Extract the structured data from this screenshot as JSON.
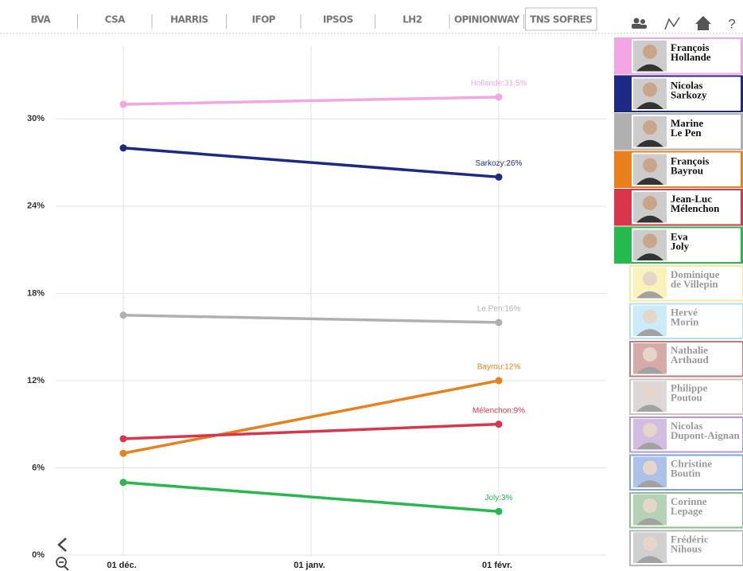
{
  "tabs": [
    {
      "label": "BVA"
    },
    {
      "label": "CSA"
    },
    {
      "label": "HARRIS"
    },
    {
      "label": "IFOP"
    },
    {
      "label": "IPSOS"
    },
    {
      "label": "LH2"
    },
    {
      "label": "OPINIONWAY"
    },
    {
      "label": "TNS SOFRES",
      "active": true
    }
  ],
  "toolbar": {
    "help": "?"
  },
  "chart_data": {
    "type": "line",
    "x": [
      "01 déc.",
      "01 févr."
    ],
    "xticks": [
      "01 déc.",
      "01 janv.",
      "01 févr."
    ],
    "ylim": [
      0,
      35
    ],
    "yticks": [
      {
        "value": 0,
        "label": "0%"
      },
      {
        "value": 6,
        "label": "6%"
      },
      {
        "value": 12,
        "label": "12%"
      },
      {
        "value": 18,
        "label": "18%"
      },
      {
        "value": 24,
        "label": "24%"
      },
      {
        "value": 30,
        "label": "30%"
      }
    ],
    "grid": true,
    "series": [
      {
        "color": "#f4a6e4",
        "values": [
          31,
          31.5
        ],
        "value_labels": [
          null,
          "Hollande:31.5%"
        ]
      },
      {
        "color": "#1c2a86",
        "values": [
          28,
          26
        ],
        "value_labels": [
          null,
          "Sarkozy:26%"
        ]
      },
      {
        "color": "#b0b0b0",
        "values": [
          16.5,
          16
        ],
        "value_labels": [
          null,
          "Le Pen:16%"
        ]
      },
      {
        "color": "#e8801e",
        "values": [
          7,
          12
        ],
        "value_labels": [
          null,
          "Bayrou:12%"
        ]
      },
      {
        "color": "#d8364c",
        "values": [
          8,
          9
        ],
        "value_labels": [
          null,
          "Mélenchon:9%"
        ]
      },
      {
        "color": "#27b84e",
        "values": [
          5,
          3
        ],
        "value_labels": [
          null,
          "Joly:3%"
        ]
      }
    ]
  },
  "candidates": [
    {
      "name_lines": [
        "François",
        "Hollande"
      ],
      "color": "#f4a6e4",
      "active": true
    },
    {
      "name_lines": [
        "Nicolas",
        "Sarkozy"
      ],
      "color": "#1c2a86",
      "active": true
    },
    {
      "name_lines": [
        "Marine",
        "Le Pen"
      ],
      "color": "#b0b0b0",
      "active": true
    },
    {
      "name_lines": [
        "François",
        "Bayrou"
      ],
      "color": "#e8801e",
      "active": true
    },
    {
      "name_lines": [
        "Jean-Luc",
        "Mélenchon"
      ],
      "color": "#d8364c",
      "active": true
    },
    {
      "name_lines": [
        "Eva",
        "Joly"
      ],
      "color": "#27b84e",
      "active": true
    },
    {
      "name_lines": [
        "Dominique",
        "de Villepin"
      ],
      "color": "#f3e36a",
      "active": false
    },
    {
      "name_lines": [
        "Hervé",
        "Morin"
      ],
      "color": "#8fd4f0",
      "active": false
    },
    {
      "name_lines": [
        "Nathalie",
        "Arthaud"
      ],
      "color": "#a84444",
      "active": false
    },
    {
      "name_lines": [
        "Philippe",
        "Poutou"
      ],
      "color": "#b8a8a8",
      "active": false
    },
    {
      "name_lines": [
        "Nicolas",
        "Dupont-Aignan"
      ],
      "color": "#9a6cc0",
      "active": false
    },
    {
      "name_lines": [
        "Christine",
        "Boutin"
      ],
      "color": "#4a7ad0",
      "active": false
    },
    {
      "name_lines": [
        "Corinne",
        "Lepage"
      ],
      "color": "#5aa060",
      "active": false
    },
    {
      "name_lines": [
        "Frédéric",
        "Nihous"
      ],
      "color": "#999999",
      "active": false
    }
  ]
}
